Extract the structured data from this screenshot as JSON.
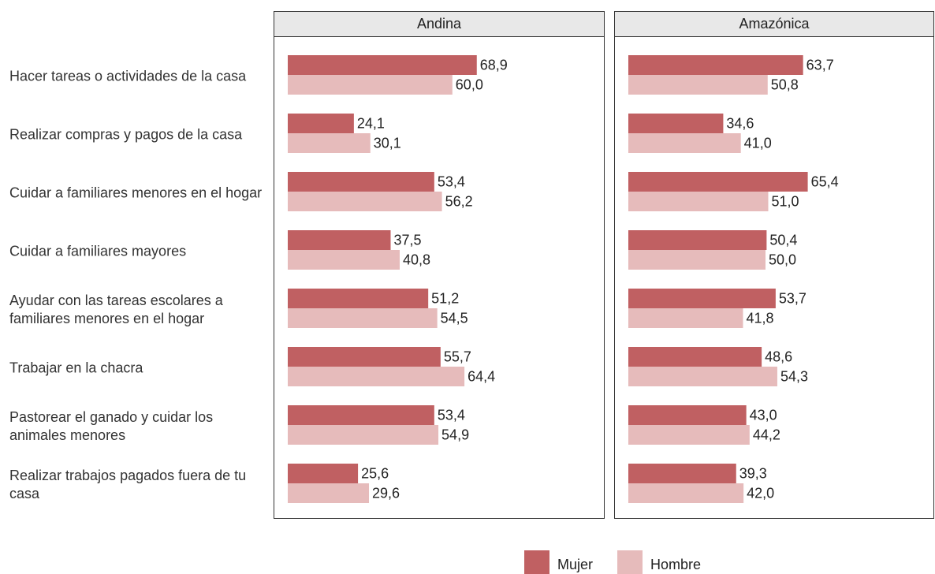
{
  "chart_data": {
    "type": "bar",
    "orientation": "horizontal",
    "panels": [
      "Andina",
      "Amazónica"
    ],
    "categories": [
      "Hacer tareas o actividades de la casa",
      "Realizar compras y pagos de la casa",
      "Cuidar a familiares menores en el hogar",
      "Cuidar a familiares mayores",
      "Ayudar con las tareas escolares a familiares menores en el hogar",
      "Trabajar en la chacra",
      "Pastorear el ganado y cuidar los animales menores",
      "Realizar trabajos pagados fuera de tu casa"
    ],
    "series": [
      {
        "name": "Mujer",
        "color": "#c06062",
        "values": [
          [
            68.9,
            24.1,
            53.4,
            37.5,
            51.2,
            55.7,
            53.4,
            25.6
          ],
          [
            63.7,
            34.6,
            65.4,
            50.4,
            53.7,
            48.6,
            43.0,
            39.3
          ]
        ],
        "value_labels": [
          [
            "68,9",
            "24,1",
            "53,4",
            "37,5",
            "51,2",
            "55,7",
            "53,4",
            "25,6"
          ],
          [
            "63,7",
            "34,6",
            "65,4",
            "50,4",
            "53,7",
            "48,6",
            "43,0",
            "39,3"
          ]
        ]
      },
      {
        "name": "Hombre",
        "color": "#e6bbbb",
        "values": [
          [
            60.0,
            30.1,
            56.2,
            40.8,
            54.5,
            64.4,
            54.9,
            29.6
          ],
          [
            50.8,
            41.0,
            51.0,
            50.0,
            41.8,
            54.3,
            44.2,
            42.0
          ]
        ],
        "value_labels": [
          [
            "60,0",
            "30,1",
            "56,2",
            "40,8",
            "54,5",
            "64,4",
            "54,9",
            "29,6"
          ],
          [
            "50,8",
            "41,0",
            "51,0",
            "50,0",
            "41,8",
            "54,3",
            "44,2",
            "42,0"
          ]
        ]
      }
    ],
    "xlim": [
      0,
      100
    ],
    "legend": "bottom"
  }
}
